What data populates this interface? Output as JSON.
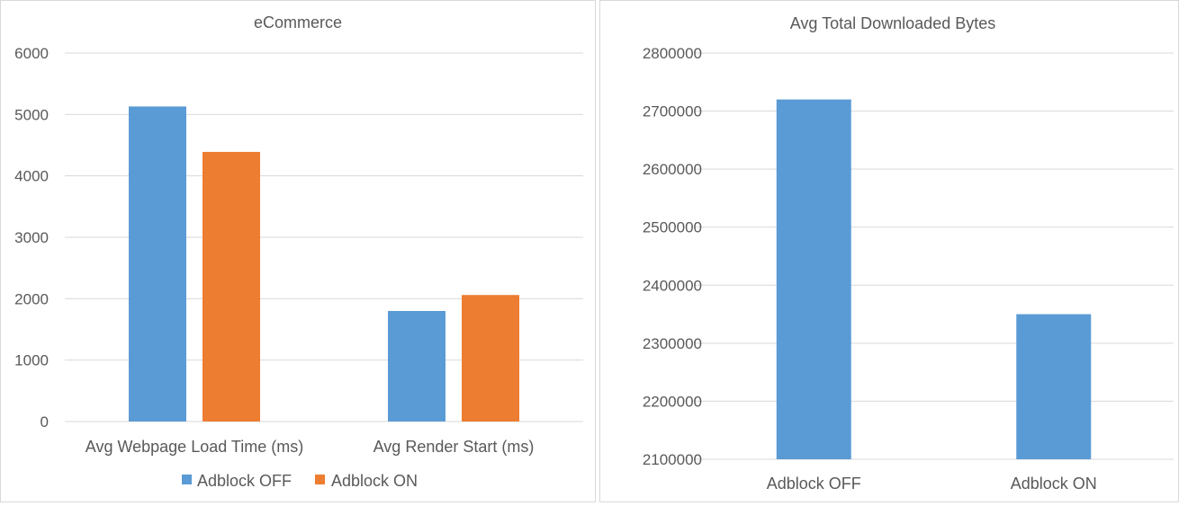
{
  "chart_data": [
    {
      "type": "bar",
      "title": "eCommerce",
      "categories": [
        "Avg Webpage Load Time (ms)",
        "Avg Render Start (ms)"
      ],
      "series": [
        {
          "name": "Adblock OFF",
          "color": "#5b9bd5",
          "values": [
            5130,
            1800
          ]
        },
        {
          "name": "Adblock ON",
          "color": "#ed7d31",
          "values": [
            4390,
            2060
          ]
        }
      ],
      "ylim": [
        0,
        6000
      ],
      "yticks": [
        0,
        1000,
        2000,
        3000,
        4000,
        5000,
        6000
      ],
      "grid": true,
      "legend": "bottom"
    },
    {
      "type": "bar",
      "title": "Avg Total Downloaded Bytes",
      "categories": [
        "Adblock OFF",
        "Adblock ON"
      ],
      "series": [
        {
          "color": "#5b9bd5",
          "values": [
            2720000,
            2350000
          ]
        }
      ],
      "ylim": [
        2100000,
        2800000
      ],
      "yticks": [
        2100000,
        2200000,
        2300000,
        2400000,
        2500000,
        2600000,
        2700000,
        2800000
      ],
      "grid": true,
      "legend": "none"
    }
  ]
}
